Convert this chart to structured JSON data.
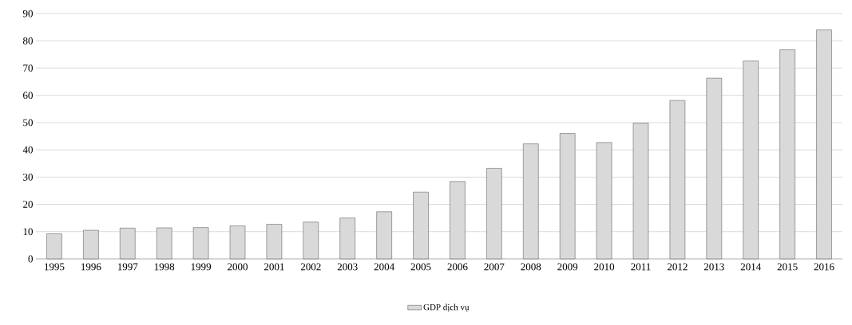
{
  "chart_data": {
    "type": "bar",
    "categories": [
      "1995",
      "1996",
      "1997",
      "1998",
      "1999",
      "2000",
      "2001",
      "2002",
      "2003",
      "2004",
      "2005",
      "2006",
      "2007",
      "2008",
      "2009",
      "2010",
      "2011",
      "2012",
      "2013",
      "2014",
      "2015",
      "2016"
    ],
    "series": [
      {
        "name": "GDP dịch vụ",
        "color": "#d9d9d9",
        "values": [
          9.2,
          10.5,
          11.3,
          11.4,
          11.5,
          12.1,
          12.7,
          13.5,
          15.0,
          17.3,
          24.5,
          28.4,
          33.2,
          42.2,
          46.0,
          42.7,
          49.8,
          58.1,
          66.3,
          72.6,
          76.7,
          84.0
        ]
      }
    ],
    "ylim": [
      0,
      90
    ],
    "yticks": [
      0,
      10,
      20,
      30,
      40,
      50,
      60,
      70,
      80,
      90
    ],
    "grid": "y",
    "legend": "bottom"
  }
}
